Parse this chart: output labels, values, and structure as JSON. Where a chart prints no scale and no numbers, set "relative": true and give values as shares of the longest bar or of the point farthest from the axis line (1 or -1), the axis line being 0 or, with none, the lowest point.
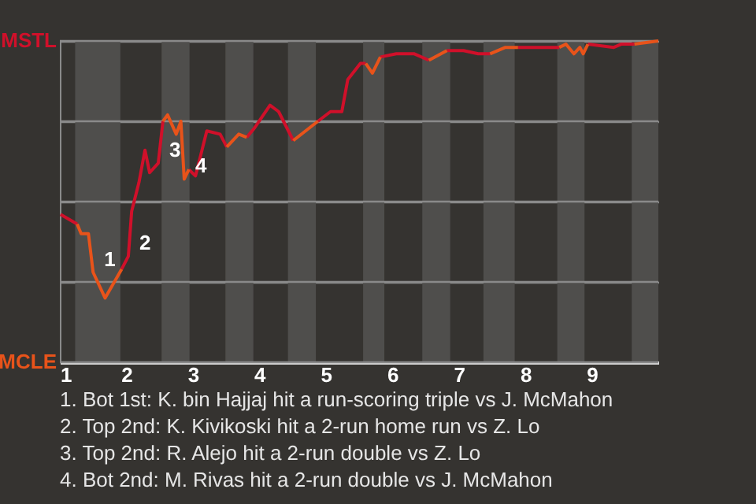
{
  "chart_data": {
    "type": "line",
    "xlim": [
      1,
      10
    ],
    "xticks": [
      1,
      2,
      3,
      4,
      5,
      6,
      7,
      8,
      9
    ],
    "relative": true,
    "grid": "y",
    "line_style": "solid",
    "series": [
      {
        "color": "#d0102a",
        "x": [
          1.01,
          1.26,
          1.56,
          1.93,
          2.03,
          2.08,
          2.19,
          2.28,
          2.35,
          2.48,
          2.55,
          2.73,
          2.94,
          3.04,
          3.21,
          3.41,
          3.51,
          3.63,
          3.81,
          3.93,
          4.16,
          4.29,
          4.51,
          4.68,
          4.88,
          5.07,
          5.24,
          5.33,
          5.52,
          5.6,
          5.73,
          5.82,
          6.06,
          6.33,
          6.55,
          6.68,
          6.82,
          7.07,
          7.29,
          7.47,
          7.66,
          7.89,
          8.51,
          8.71,
          8.94,
          9.33,
          9.44,
          9.64
        ],
        "values": [
          0.46,
          0.43,
          null,
          0.29,
          0.33,
          0.47,
          0.56,
          0.66,
          0.59,
          0.62,
          0.75,
          null,
          0.6,
          0.58,
          0.72,
          0.71,
          0.67,
          null,
          0.7,
          0.73,
          0.8,
          0.78,
          0.69,
          null,
          0.75,
          0.78,
          0.78,
          0.88,
          0.93,
          0.93,
          null,
          0.95,
          0.96,
          0.96,
          0.94,
          null,
          0.97,
          0.97,
          0.96,
          0.96,
          null,
          0.98,
          0.98,
          null,
          0.99,
          0.98,
          0.99,
          0.99
        ]
      },
      {
        "color": "#e8531a",
        "x": [
          1.26,
          1.32,
          1.43,
          1.5,
          1.68,
          1.93,
          2.23,
          2.55,
          2.62,
          2.75,
          2.82,
          2.87,
          2.94,
          3.17,
          3.51,
          3.69,
          3.81,
          4.13,
          4.51,
          4.88,
          5.27,
          5.6,
          5.7,
          5.82,
          6.13,
          6.55,
          6.82,
          7.19,
          7.47,
          7.7,
          7.89,
          8.27,
          8.51,
          8.61,
          8.73,
          8.82,
          8.87,
          8.94,
          9.29,
          9.64,
          10
        ],
        "values": [
          0.43,
          0.4,
          0.4,
          0.28,
          0.2,
          0.29,
          null,
          0.75,
          0.77,
          0.71,
          0.75,
          0.57,
          0.6,
          null,
          0.67,
          0.71,
          0.7,
          null,
          0.69,
          0.75,
          null,
          0.93,
          0.9,
          0.95,
          null,
          0.94,
          0.97,
          null,
          0.96,
          0.98,
          0.98,
          null,
          0.98,
          0.99,
          0.96,
          0.98,
          0.96,
          0.99,
          null,
          0.99,
          1.0
        ]
      }
    ],
    "bands": [
      {
        "axis": "x",
        "from": 1.23,
        "to": 1.91,
        "color": "#4f4e4c"
      },
      {
        "axis": "x",
        "from": 2.53,
        "to": 2.95,
        "color": "#4f4e4c"
      },
      {
        "axis": "x",
        "from": 3.49,
        "to": 3.91,
        "color": "#4f4e4c"
      },
      {
        "axis": "x",
        "from": 4.43,
        "to": 4.85,
        "color": "#4f4e4c"
      },
      {
        "axis": "x",
        "from": 5.56,
        "to": 5.88,
        "color": "#4f4e4c"
      },
      {
        "axis": "x",
        "from": 6.45,
        "to": 6.87,
        "color": "#4f4e4c"
      },
      {
        "axis": "x",
        "from": 7.37,
        "to": 7.84,
        "color": "#4f4e4c"
      },
      {
        "axis": "x",
        "from": 8.48,
        "to": 8.89,
        "color": "#4f4e4c"
      },
      {
        "axis": "x",
        "from": 9.6,
        "to": 10,
        "color": "#4f4e4c"
      }
    ],
    "annotations": [
      "MSTL",
      "MCLE",
      {
        "text": "1",
        "x": 1.5,
        "y": 0.28
      },
      {
        "text": "2",
        "x": 2.03,
        "y": 0.33
      },
      {
        "text": "3",
        "x": 2.48,
        "y": 0.62
      },
      {
        "text": "4",
        "x": 2.87,
        "y": 0.57
      },
      "1. Bot 1st: K. bin Hajjaj hit a run-scoring triple vs J. McMahon",
      "2. Top 2nd: K. Kivikoski hit a 2-run home run vs Z. Lo",
      "3. Top 2nd: R. Alejo hit a 2-run double vs Z. Lo",
      "4. Bot 2nd: M. Rivas hit a 2-run double vs J. McMahon"
    ]
  }
}
